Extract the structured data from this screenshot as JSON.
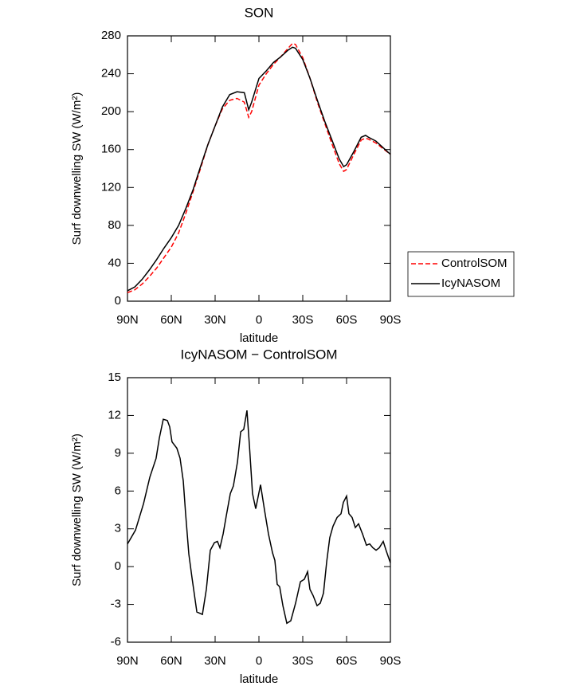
{
  "chart_data": [
    {
      "type": "line",
      "title": "SON",
      "x_label": "latitude",
      "y_label": "Surf downwelling SW (W/m²)",
      "x": [
        90,
        85,
        80,
        75,
        70,
        65,
        60,
        55,
        50,
        45,
        40,
        35,
        30,
        25,
        20,
        15,
        10,
        7,
        5,
        0,
        -5,
        -10,
        -15,
        -20,
        -23,
        -25,
        -30,
        -35,
        -40,
        -45,
        -50,
        -55,
        -58,
        -60,
        -65,
        -70,
        -73,
        -75,
        -80,
        -85,
        -90
      ],
      "series": [
        {
          "name": "ControlSOM",
          "color": "#ff0000",
          "linestyle": "dashed",
          "values": [
            9,
            12,
            18,
            26,
            35,
            46,
            57,
            72,
            93,
            116,
            140,
            165,
            185,
            203,
            212,
            214,
            210,
            194,
            200,
            228,
            240,
            250,
            258,
            267,
            272,
            271,
            257,
            235,
            210,
            188,
            166,
            145,
            137,
            139,
            155,
            170,
            172,
            171,
            167,
            161,
            155
          ]
        },
        {
          "name": "IcyNASOM",
          "color": "#000000",
          "linestyle": "solid",
          "values": [
            11,
            15,
            23,
            33,
            44,
            56,
            67,
            80,
            98,
            118,
            142,
            165,
            185,
            205,
            218,
            221,
            220,
            202,
            210,
            235,
            243,
            252,
            258,
            265,
            268,
            267,
            255,
            235,
            212,
            190,
            170,
            150,
            142,
            144,
            158,
            173,
            175,
            173,
            169,
            162,
            155
          ]
        }
      ],
      "xlim": [
        90,
        -90
      ],
      "xticks": [
        {
          "value": 90,
          "label": "90N"
        },
        {
          "value": 60,
          "label": "60N"
        },
        {
          "value": 30,
          "label": "30N"
        },
        0,
        {
          "value": -30,
          "label": "30S"
        },
        {
          "value": -60,
          "label": "60S"
        },
        {
          "value": -90,
          "label": "90S"
        }
      ],
      "ylim": [
        0,
        280
      ],
      "yticks": [
        0,
        40,
        80,
        120,
        160,
        200,
        240,
        280
      ],
      "legend": "right"
    },
    {
      "type": "line",
      "title": "IcyNASOM − ControlSOM",
      "x_label": "latitude",
      "y_label": "Surf downwelling SW (W/m²)",
      "x": [
        90,
        84.5,
        79,
        74.7,
        70.4,
        68.2,
        65.5,
        62.7,
        61.1,
        59.5,
        56.2,
        54,
        51.8,
        50.2,
        48,
        45.8,
        42.5,
        38.7,
        36,
        33.3,
        30.5,
        28.4,
        26.7,
        24.5,
        22.4,
        19.6,
        17.5,
        14.7,
        12.5,
        10.4,
        8.2,
        6.5,
        4.4,
        2.2,
        -1.1,
        -3.8,
        -6.5,
        -9.3,
        -10.9,
        -12.5,
        -14.2,
        -16.4,
        -19.1,
        -21.8,
        -25.1,
        -28.4,
        -31.1,
        -33.3,
        -34.9,
        -37.1,
        -39.8,
        -42,
        -44.2,
        -46.4,
        -48.5,
        -50.7,
        -53.5,
        -56.2,
        -57.8,
        -60,
        -61.6,
        -63.8,
        -66,
        -68.2,
        -70.9,
        -73.6,
        -75.8,
        -78,
        -80.2,
        -82.4,
        -85.1,
        -87.3,
        -90
      ],
      "values": [
        1.8,
        2.9,
        5.0,
        7.1,
        8.6,
        10.2,
        11.7,
        11.6,
        11.1,
        9.9,
        9.4,
        8.6,
        6.8,
        4.2,
        1.0,
        -0.9,
        -3.6,
        -3.8,
        -1.8,
        1.3,
        1.9,
        2.0,
        1.5,
        2.6,
        4.0,
        5.8,
        6.4,
        8.3,
        10.7,
        10.9,
        12.4,
        9.6,
        5.8,
        4.6,
        6.5,
        4.5,
        2.6,
        1.1,
        0.5,
        -1.4,
        -1.6,
        -3.1,
        -4.5,
        -4.3,
        -2.9,
        -1.2,
        -1.0,
        -0.4,
        -1.8,
        -2.3,
        -3.1,
        -2.9,
        -2.1,
        0.4,
        2.3,
        3.2,
        3.9,
        4.2,
        5.1,
        5.6,
        4.2,
        3.9,
        3.1,
        3.4,
        2.6,
        1.7,
        1.8,
        1.5,
        1.3,
        1.5,
        2.0,
        1.2,
        0.3
      ],
      "color": "#000000",
      "linestyle": "solid",
      "xlim": [
        90,
        -90
      ],
      "xticks": [
        {
          "value": 90,
          "label": "90N"
        },
        {
          "value": 60,
          "label": "60N"
        },
        {
          "value": 30,
          "label": "30N"
        },
        0,
        {
          "value": -30,
          "label": "30S"
        },
        {
          "value": -60,
          "label": "60S"
        },
        {
          "value": -90,
          "label": "90S"
        }
      ],
      "ylim": [
        -6,
        15
      ],
      "yticks": [
        -6,
        -3,
        0,
        3,
        6,
        9,
        12,
        15
      ]
    }
  ]
}
